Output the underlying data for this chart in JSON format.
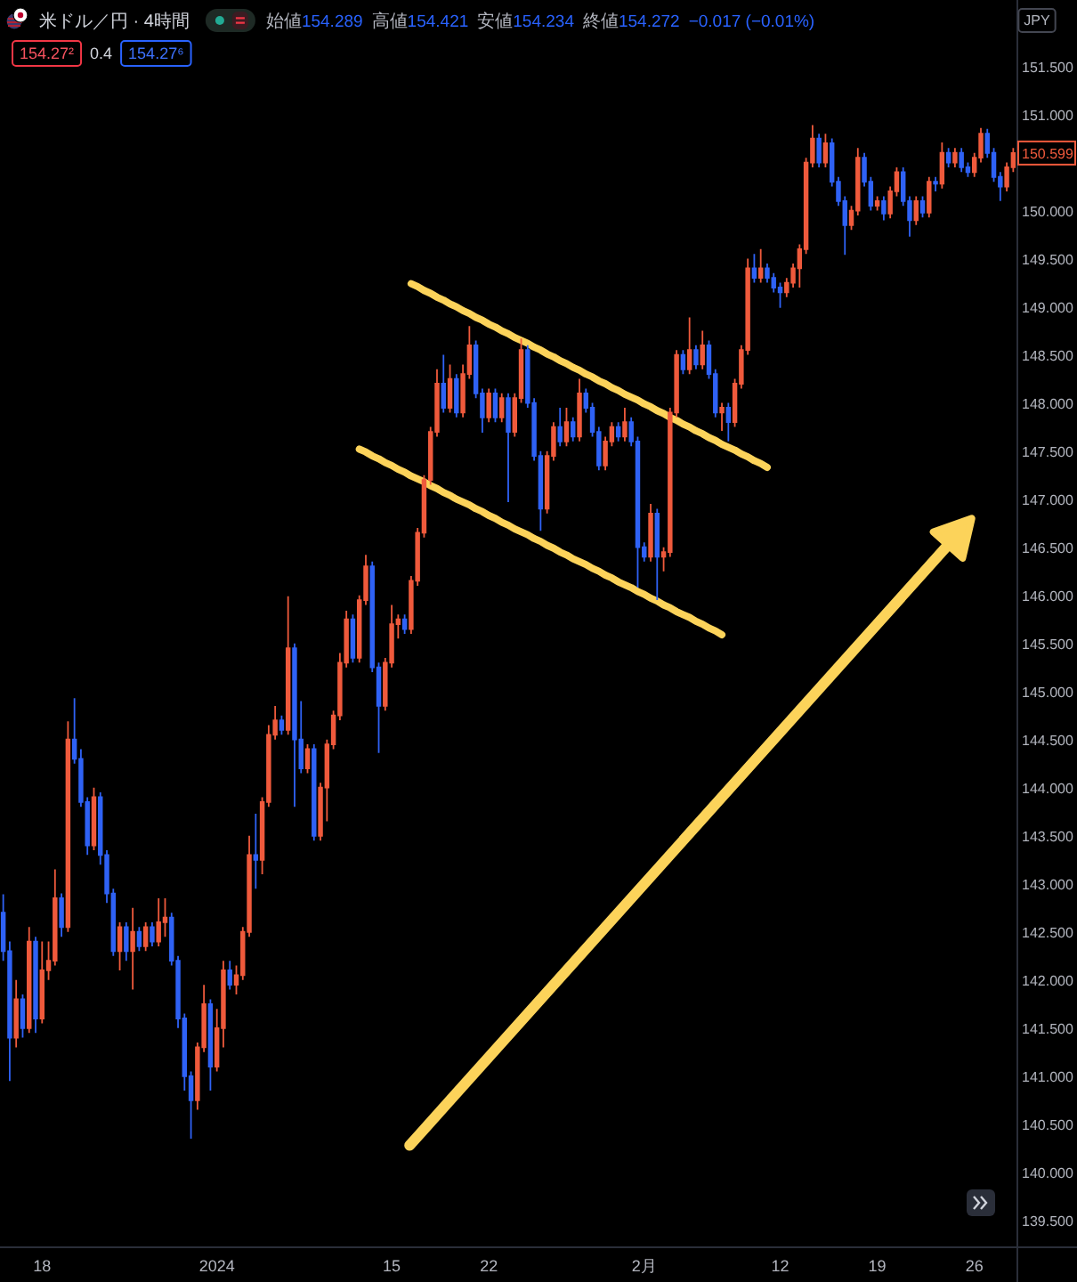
{
  "chart_data": {
    "type": "candlestick",
    "title": "米ドル／円 · 4時間",
    "ylabel": "JPY",
    "annotations": [
      "始値154.289",
      "高値154.421",
      "安値154.234",
      "終値154.272",
      "−0.017 (−0.01%)",
      "154.27²",
      "0.4",
      "154.27⁶",
      {
        "text": "150.599",
        "y": 150.599
      }
    ],
    "ylim": [
      139.23,
      152.19
    ],
    "yticks": [
      {
        "value": 139.5,
        "label": "139.500"
      },
      {
        "value": 140,
        "label": "140.000"
      },
      {
        "value": 140.5,
        "label": "140.500"
      },
      {
        "value": 141,
        "label": "141.000"
      },
      {
        "value": 141.5,
        "label": "141.500"
      },
      {
        "value": 142,
        "label": "142.000"
      },
      {
        "value": 142.5,
        "label": "142.500"
      },
      {
        "value": 143,
        "label": "143.000"
      },
      {
        "value": 143.5,
        "label": "143.500"
      },
      {
        "value": 144,
        "label": "144.000"
      },
      {
        "value": 144.5,
        "label": "144.500"
      },
      {
        "value": 145,
        "label": "145.000"
      },
      {
        "value": 145.5,
        "label": "145.500"
      },
      {
        "value": 146,
        "label": "146.000"
      },
      {
        "value": 146.5,
        "label": "146.500"
      },
      {
        "value": 147,
        "label": "147.000"
      },
      {
        "value": 147.5,
        "label": "147.500"
      },
      {
        "value": 148,
        "label": "148.000"
      },
      {
        "value": 148.5,
        "label": "148.500"
      },
      {
        "value": 149,
        "label": "149.000"
      },
      {
        "value": 149.5,
        "label": "149.500"
      },
      {
        "value": 150,
        "label": "150.000"
      },
      {
        "value": 151,
        "label": "151.000"
      },
      {
        "value": 151.5,
        "label": "151.500"
      }
    ],
    "categories": [
      null,
      null,
      null,
      null,
      null,
      null,
      "18",
      null,
      null,
      null,
      null,
      null,
      null,
      null,
      null,
      null,
      null,
      null,
      null,
      null,
      null,
      null,
      null,
      null,
      null,
      null,
      null,
      null,
      null,
      null,
      null,
      null,
      null,
      "2024",
      null,
      null,
      null,
      null,
      null,
      null,
      null,
      null,
      null,
      null,
      null,
      null,
      null,
      null,
      null,
      null,
      null,
      null,
      null,
      null,
      null,
      null,
      null,
      null,
      null,
      null,
      "15",
      null,
      null,
      null,
      null,
      null,
      null,
      null,
      null,
      null,
      null,
      null,
      null,
      null,
      null,
      "22",
      null,
      null,
      null,
      null,
      null,
      null,
      null,
      null,
      null,
      null,
      null,
      null,
      null,
      null,
      null,
      null,
      null,
      null,
      null,
      null,
      null,
      null,
      null,
      "2月",
      null,
      null,
      null,
      null,
      null,
      null,
      null,
      null,
      null,
      null,
      null,
      null,
      null,
      null,
      null,
      null,
      null,
      null,
      null,
      null,
      "12",
      null,
      null,
      null,
      null,
      null,
      null,
      null,
      null,
      null,
      null,
      null,
      null,
      null,
      null,
      "19",
      null,
      null,
      null,
      null,
      null,
      null,
      null,
      null,
      null,
      null,
      null,
      null,
      null,
      null,
      "26",
      null,
      null,
      null,
      null,
      null,
      null
    ],
    "ohlc": [
      [
        142.7,
        142.89,
        142.2,
        142.3
      ],
      [
        142.3,
        142.4,
        140.95,
        141.4
      ],
      [
        141.4,
        142,
        141.3,
        141.8
      ],
      [
        141.8,
        141.85,
        141.4,
        141.5
      ],
      [
        141.5,
        142.55,
        141.45,
        142.4
      ],
      [
        142.4,
        142.45,
        141.45,
        141.6
      ],
      [
        141.6,
        142.4,
        141.55,
        142.1
      ],
      [
        142.1,
        142.4,
        142,
        142.2
      ],
      [
        142.2,
        143.15,
        142.15,
        142.85
      ],
      [
        142.85,
        142.9,
        142.45,
        142.55
      ],
      [
        142.55,
        144.69,
        142.5,
        144.5
      ],
      [
        144.5,
        144.93,
        144.25,
        144.3
      ],
      [
        144.3,
        144.4,
        143.8,
        143.85
      ],
      [
        143.85,
        143.9,
        143.3,
        143.4
      ],
      [
        143.4,
        144,
        143.35,
        143.9
      ],
      [
        143.9,
        143.95,
        143.2,
        143.3
      ],
      [
        143.3,
        143.35,
        142.8,
        142.9
      ],
      [
        142.9,
        142.95,
        142.25,
        142.3
      ],
      [
        142.3,
        142.6,
        142.1,
        142.55
      ],
      [
        142.55,
        142.6,
        142.2,
        142.3
      ],
      [
        142.3,
        142.75,
        141.9,
        142.5
      ],
      [
        142.5,
        142.55,
        142.3,
        142.35
      ],
      [
        142.35,
        142.6,
        142.3,
        142.55
      ],
      [
        142.55,
        142.6,
        142.35,
        142.4
      ],
      [
        142.4,
        142.85,
        142.35,
        142.6
      ],
      [
        142.6,
        142.85,
        142.45,
        142.65
      ],
      [
        142.65,
        142.7,
        142.15,
        142.2
      ],
      [
        142.2,
        142.25,
        141.5,
        141.6
      ],
      [
        141.6,
        141.65,
        140.85,
        141
      ],
      [
        141,
        141.05,
        140.35,
        140.75
      ],
      [
        140.75,
        141.35,
        140.65,
        141.3
      ],
      [
        141.3,
        141.95,
        141.25,
        141.75
      ],
      [
        141.75,
        141.8,
        140.85,
        141.1
      ],
      [
        141.1,
        141.7,
        141.05,
        141.5
      ],
      [
        141.5,
        142.2,
        141.3,
        142.1
      ],
      [
        142.1,
        142.2,
        141.9,
        141.95
      ],
      [
        141.95,
        142.15,
        141.85,
        142.05
      ],
      [
        142.05,
        142.55,
        142,
        142.5
      ],
      [
        142.5,
        143.5,
        142.45,
        143.3
      ],
      [
        143.3,
        143.73,
        142.95,
        143.25
      ],
      [
        143.25,
        143.9,
        143.1,
        143.85
      ],
      [
        143.85,
        144.65,
        143.8,
        144.55
      ],
      [
        144.55,
        144.85,
        144.5,
        144.7
      ],
      [
        144.7,
        144.75,
        144.55,
        144.6
      ],
      [
        144.6,
        145.99,
        144.55,
        145.45
      ],
      [
        145.45,
        145.5,
        143.8,
        144.5
      ],
      [
        144.5,
        144.9,
        144.15,
        144.2
      ],
      [
        144.2,
        144.45,
        144.15,
        144.4
      ],
      [
        144.4,
        144.45,
        143.45,
        143.5
      ],
      [
        143.5,
        144.05,
        143.45,
        144
      ],
      [
        144,
        144.5,
        143.65,
        144.45
      ],
      [
        144.45,
        144.8,
        144.4,
        144.75
      ],
      [
        144.75,
        145.4,
        144.7,
        145.3
      ],
      [
        145.3,
        145.84,
        145.25,
        145.75
      ],
      [
        145.75,
        145.8,
        145.3,
        145.35
      ],
      [
        145.35,
        146,
        145.3,
        145.95
      ],
      [
        145.95,
        146.42,
        145.9,
        146.3
      ],
      [
        146.3,
        146.35,
        145.2,
        145.25
      ],
      [
        145.25,
        145.3,
        144.36,
        144.85
      ],
      [
        144.85,
        145.35,
        144.8,
        145.3
      ],
      [
        145.3,
        145.9,
        145.25,
        145.7
      ],
      [
        145.7,
        145.8,
        145.55,
        145.75
      ],
      [
        145.75,
        145.8,
        145.6,
        145.65
      ],
      [
        145.65,
        146.2,
        145.6,
        146.15
      ],
      [
        146.15,
        146.7,
        146.1,
        146.65
      ],
      [
        146.65,
        147.25,
        146.6,
        147.2
      ],
      [
        147.2,
        147.75,
        147.15,
        147.7
      ],
      [
        147.7,
        148.35,
        147.65,
        148.2
      ],
      [
        148.2,
        148.5,
        147.9,
        147.95
      ],
      [
        147.95,
        148.4,
        147.9,
        148.25
      ],
      [
        148.25,
        148.3,
        147.85,
        147.9
      ],
      [
        147.9,
        148.4,
        147.85,
        148.3
      ],
      [
        148.3,
        148.8,
        148.25,
        148.6
      ],
      [
        148.6,
        148.65,
        148.05,
        148.1
      ],
      [
        148.1,
        148.15,
        147.69,
        147.85
      ],
      [
        147.85,
        148.15,
        147.8,
        148.1
      ],
      [
        148.1,
        148.15,
        147.8,
        147.85
      ],
      [
        147.85,
        148.1,
        147.8,
        148.05
      ],
      [
        148.05,
        148.1,
        146.97,
        147.7
      ],
      [
        147.7,
        148.1,
        147.65,
        148.05
      ],
      [
        148.05,
        148.67,
        148,
        148.55
      ],
      [
        148.55,
        148.6,
        147.95,
        148
      ],
      [
        148,
        148.05,
        147.4,
        147.45
      ],
      [
        147.45,
        147.5,
        146.67,
        146.9
      ],
      [
        146.9,
        147.5,
        146.85,
        147.45
      ],
      [
        147.45,
        147.8,
        147.4,
        147.75
      ],
      [
        147.75,
        147.95,
        147.55,
        147.6
      ],
      [
        147.6,
        147.95,
        147.55,
        147.8
      ],
      [
        147.8,
        147.85,
        147.6,
        147.65
      ],
      [
        147.65,
        148.25,
        147.6,
        148.1
      ],
      [
        148.1,
        148.15,
        147.9,
        147.95
      ],
      [
        147.95,
        148,
        147.65,
        147.7
      ],
      [
        147.7,
        147.75,
        147.3,
        147.35
      ],
      [
        147.35,
        147.65,
        147.3,
        147.6
      ],
      [
        147.6,
        147.8,
        147.55,
        147.75
      ],
      [
        147.75,
        147.8,
        147.6,
        147.65
      ],
      [
        147.65,
        147.95,
        147.6,
        147.8
      ],
      [
        147.8,
        147.85,
        147.55,
        147.6
      ],
      [
        147.6,
        147.65,
        146.08,
        146.5
      ],
      [
        146.5,
        146.55,
        146.35,
        146.4
      ],
      [
        146.4,
        146.95,
        146.35,
        146.85
      ],
      [
        146.85,
        146.9,
        145.95,
        146.4
      ],
      [
        146.4,
        146.5,
        146.25,
        146.45
      ],
      [
        146.45,
        147.95,
        146.4,
        147.9
      ],
      [
        147.9,
        148.55,
        147.85,
        148.5
      ],
      [
        148.5,
        148.55,
        148.3,
        148.35
      ],
      [
        148.35,
        148.89,
        148.3,
        148.55
      ],
      [
        148.55,
        148.6,
        148.35,
        148.4
      ],
      [
        148.4,
        148.75,
        148.35,
        148.6
      ],
      [
        148.6,
        148.65,
        148.25,
        148.3
      ],
      [
        148.3,
        148.35,
        147.85,
        147.9
      ],
      [
        147.9,
        148,
        147.71,
        147.95
      ],
      [
        147.95,
        148,
        147.6,
        147.8
      ],
      [
        147.8,
        148.25,
        147.75,
        148.2
      ],
      [
        148.2,
        148.6,
        148.15,
        148.55
      ],
      [
        148.55,
        149.5,
        148.5,
        149.4
      ],
      [
        149.4,
        149.55,
        149.25,
        149.3
      ],
      [
        149.3,
        149.6,
        149.25,
        149.4
      ],
      [
        149.4,
        149.45,
        149.25,
        149.3
      ],
      [
        149.3,
        149.35,
        149.15,
        149.2
      ],
      [
        149.2,
        149.25,
        148.99,
        149.15
      ],
      [
        149.15,
        149.3,
        149.1,
        149.25
      ],
      [
        149.25,
        149.45,
        149.2,
        149.4
      ],
      [
        149.4,
        149.65,
        149.2,
        149.6
      ],
      [
        149.6,
        150.55,
        149.55,
        150.5
      ],
      [
        150.5,
        150.89,
        150.45,
        150.75
      ],
      [
        150.75,
        150.8,
        150.45,
        150.5
      ],
      [
        150.5,
        150.8,
        150.45,
        150.7
      ],
      [
        150.7,
        150.75,
        150.25,
        150.3
      ],
      [
        150.3,
        150.35,
        150.05,
        150.1
      ],
      [
        150.1,
        150.15,
        149.54,
        149.85
      ],
      [
        149.85,
        150.05,
        149.8,
        150
      ],
      [
        150,
        150.65,
        149.95,
        150.55
      ],
      [
        150.55,
        150.6,
        150.25,
        150.3
      ],
      [
        150.3,
        150.35,
        150,
        150.05
      ],
      [
        150.05,
        150.15,
        150,
        150.1
      ],
      [
        150.1,
        150.15,
        149.9,
        149.97
      ],
      [
        149.97,
        150.25,
        149.92,
        150.2
      ],
      [
        150.2,
        150.45,
        150.15,
        150.4
      ],
      [
        150.4,
        150.45,
        150.05,
        150.1
      ],
      [
        150.1,
        150.15,
        149.73,
        149.9
      ],
      [
        149.9,
        150.15,
        149.85,
        150.1
      ],
      [
        150.1,
        150.15,
        149.93,
        149.98
      ],
      [
        149.98,
        150.35,
        149.93,
        150.3
      ],
      [
        150.3,
        150.35,
        150.2,
        150.28
      ],
      [
        150.28,
        150.71,
        150.23,
        150.6
      ],
      [
        150.6,
        150.65,
        150.45,
        150.5
      ],
      [
        150.5,
        150.65,
        150.45,
        150.6
      ],
      [
        150.6,
        150.65,
        150.4,
        150.45
      ],
      [
        150.45,
        150.5,
        150.35,
        150.4
      ],
      [
        150.4,
        150.6,
        150.35,
        150.55
      ],
      [
        150.55,
        150.86,
        150.5,
        150.8
      ],
      [
        150.8,
        150.85,
        150.55,
        150.6
      ],
      [
        150.6,
        150.65,
        150.3,
        150.35
      ],
      [
        150.35,
        150.4,
        150.1,
        150.25
      ],
      [
        150.25,
        150.5,
        150.2,
        150.45
      ],
      [
        150.45,
        150.65,
        150.4,
        150.599
      ]
    ],
    "colors": [
      "#2f62f5",
      "#2f62f5",
      "#ef5a3c",
      "#2f62f5",
      "#ef5a3c",
      "#2f62f5",
      "#ef5a3c",
      "#ef5a3c",
      "#ef5a3c",
      "#2f62f5",
      "#ef5a3c",
      "#2f62f5",
      "#2f62f5",
      "#2f62f5",
      "#ef5a3c",
      "#2f62f5",
      "#2f62f5",
      "#2f62f5",
      "#ef5a3c",
      "#2f62f5",
      "#ef5a3c",
      "#2f62f5",
      "#ef5a3c",
      "#2f62f5",
      "#ef5a3c",
      "#ef5a3c",
      "#2f62f5",
      "#2f62f5",
      "#2f62f5",
      "#2f62f5",
      "#ef5a3c",
      "#ef5a3c",
      "#2f62f5",
      "#ef5a3c",
      "#ef5a3c",
      "#2f62f5",
      "#ef5a3c",
      "#ef5a3c",
      "#ef5a3c",
      "#2f62f5",
      "#ef5a3c",
      "#ef5a3c",
      "#ef5a3c",
      "#2f62f5",
      "#ef5a3c",
      "#2f62f5",
      "#2f62f5",
      "#ef5a3c",
      "#2f62f5",
      "#ef5a3c",
      "#ef5a3c",
      "#ef5a3c",
      "#ef5a3c",
      "#ef5a3c",
      "#2f62f5",
      "#ef5a3c",
      "#ef5a3c",
      "#2f62f5",
      "#2f62f5",
      "#ef5a3c",
      "#ef5a3c",
      "#ef5a3c",
      "#2f62f5",
      "#ef5a3c",
      "#ef5a3c",
      "#ef5a3c",
      "#ef5a3c",
      "#ef5a3c",
      "#2f62f5",
      "#ef5a3c",
      "#2f62f5",
      "#ef5a3c",
      "#ef5a3c",
      "#2f62f5",
      "#2f62f5",
      "#ef5a3c",
      "#2f62f5",
      "#ef5a3c",
      "#2f62f5",
      "#ef5a3c",
      "#ef5a3c",
      "#2f62f5",
      "#2f62f5",
      "#2f62f5",
      "#ef5a3c",
      "#ef5a3c",
      "#2f62f5",
      "#ef5a3c",
      "#2f62f5",
      "#ef5a3c",
      "#2f62f5",
      "#2f62f5",
      "#2f62f5",
      "#ef5a3c",
      "#ef5a3c",
      "#2f62f5",
      "#ef5a3c",
      "#2f62f5",
      "#2f62f5",
      "#2f62f5",
      "#ef5a3c",
      "#2f62f5",
      "#ef5a3c",
      "#ef5a3c",
      "#ef5a3c",
      "#2f62f5",
      "#ef5a3c",
      "#2f62f5",
      "#ef5a3c",
      "#2f62f5",
      "#2f62f5",
      "#ef5a3c",
      "#2f62f5",
      "#ef5a3c",
      "#ef5a3c",
      "#ef5a3c",
      "#2f62f5",
      "#ef5a3c",
      "#2f62f5",
      "#2f62f5",
      "#2f62f5",
      "#ef5a3c",
      "#ef5a3c",
      "#ef5a3c",
      "#ef5a3c",
      "#ef5a3c",
      "#2f62f5",
      "#ef5a3c",
      "#2f62f5",
      "#2f62f5",
      "#2f62f5",
      "#ef5a3c",
      "#ef5a3c",
      "#2f62f5",
      "#2f62f5",
      "#ef5a3c",
      "#2f62f5",
      "#ef5a3c",
      "#ef5a3c",
      "#2f62f5",
      "#2f62f5",
      "#ef5a3c",
      "#2f62f5",
      "#ef5a3c",
      "#2f62f5",
      "#ef5a3c",
      "#2f62f5",
      "#ef5a3c",
      "#2f62f5",
      "#2f62f5",
      "#ef5a3c",
      "#ef5a3c",
      "#2f62f5",
      "#2f62f5",
      "#2f62f5",
      "#ef5a3c",
      "#ef5a3c"
    ],
    "series": [
      {
        "type": "line",
        "color": "#fcd35a",
        "values": [
          null,
          null,
          null,
          null,
          null,
          null,
          null,
          null,
          null,
          null,
          null,
          null,
          null,
          null,
          null,
          null,
          null,
          null,
          null,
          null,
          null,
          null,
          null,
          null,
          null,
          null,
          null,
          null,
          null,
          null,
          null,
          null,
          null,
          null,
          null,
          null,
          null,
          null,
          null,
          null,
          null,
          null,
          null,
          null,
          null,
          null,
          null,
          null,
          null,
          null,
          null,
          null,
          null,
          null,
          null,
          null,
          null,
          null,
          null,
          null,
          null,
          null,
          null,
          149.24,
          149.21,
          149.17,
          149.14,
          149.1,
          149.07,
          149.03,
          149,
          148.96,
          148.93,
          148.89,
          148.86,
          148.82,
          148.79,
          148.75,
          148.72,
          148.68,
          148.65,
          148.62,
          148.58,
          148.55,
          148.51,
          148.48,
          148.44,
          148.41,
          148.37,
          148.34,
          148.3,
          148.27,
          148.23,
          148.2,
          148.16,
          148.13,
          148.09,
          148.06,
          148.03,
          147.99,
          147.96,
          147.92,
          147.89,
          147.85,
          147.82,
          147.78,
          147.75,
          147.71,
          147.68,
          147.64,
          147.61,
          147.57,
          147.54,
          147.51,
          147.47,
          147.44,
          147.4,
          147.37,
          147.33,
          null,
          null,
          null,
          null,
          null,
          null,
          null,
          null,
          null,
          null,
          null,
          null,
          null,
          null,
          null,
          null,
          null,
          null,
          null,
          null,
          null,
          null,
          null,
          null,
          null,
          null,
          null,
          null,
          null,
          null,
          null,
          null,
          null,
          null,
          null,
          null,
          null,
          null
        ]
      },
      {
        "type": "line",
        "color": "#fcd35a",
        "values": [
          null,
          null,
          null,
          null,
          null,
          null,
          null,
          null,
          null,
          null,
          null,
          null,
          null,
          null,
          null,
          null,
          null,
          null,
          null,
          null,
          null,
          null,
          null,
          null,
          null,
          null,
          null,
          null,
          null,
          null,
          null,
          null,
          null,
          null,
          null,
          null,
          null,
          null,
          null,
          null,
          null,
          null,
          null,
          null,
          null,
          null,
          null,
          null,
          null,
          null,
          null,
          null,
          null,
          null,
          null,
          147.52,
          147.49,
          147.45,
          147.42,
          147.38,
          147.35,
          147.31,
          147.28,
          147.24,
          147.21,
          147.18,
          147.14,
          147.11,
          147.07,
          147.04,
          147,
          146.97,
          146.94,
          146.9,
          146.87,
          146.83,
          146.8,
          146.76,
          146.73,
          146.69,
          146.66,
          146.63,
          146.59,
          146.56,
          146.52,
          146.49,
          146.45,
          146.42,
          146.38,
          146.35,
          146.32,
          146.28,
          146.25,
          146.21,
          146.18,
          146.14,
          146.11,
          146.08,
          146.04,
          146.01,
          145.97,
          145.94,
          145.9,
          145.87,
          145.83,
          145.8,
          145.77,
          145.73,
          145.7,
          145.66,
          145.63,
          145.59,
          null,
          null,
          null,
          null,
          null,
          null,
          null,
          null,
          null,
          null,
          null,
          null,
          null,
          null,
          null,
          null,
          null,
          null,
          null,
          null,
          null,
          null,
          null,
          null,
          null,
          null,
          null,
          null,
          null,
          null,
          null,
          null,
          null,
          null,
          null,
          null,
          null,
          null,
          null,
          null,
          null,
          null,
          null,
          null,
          null
        ]
      }
    ]
  }
}
